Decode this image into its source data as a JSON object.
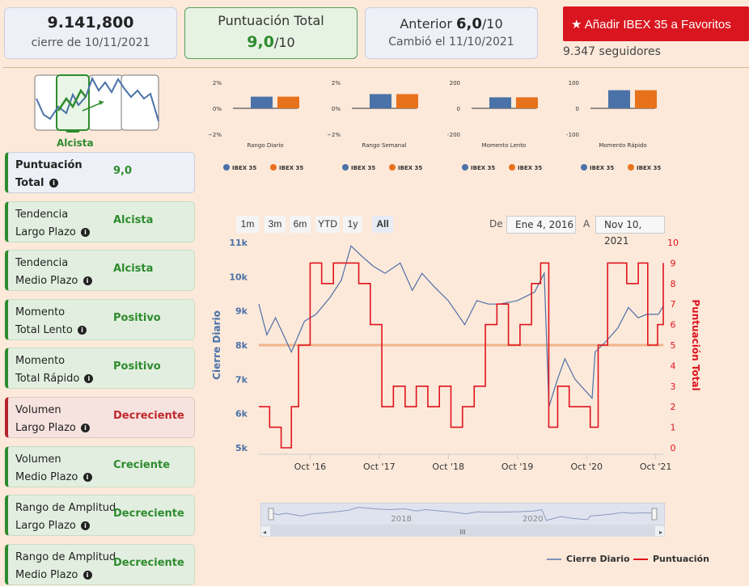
{
  "header": {
    "close_value": "9.141,800",
    "close_date": "cierre de 10/11/2021",
    "score_label": "Puntuación Total",
    "score_value": "9,0",
    "score_suffix": "/10",
    "prev_label": "Anterior",
    "prev_value": "6,0",
    "prev_suffix": "/10",
    "prev_changed": "Cambió el 11/10/2021",
    "favorite_button": "Añadir IBEX 35 a Favoritos",
    "followers": "9.347 seguidores"
  },
  "trend": {
    "label": "Alcista"
  },
  "metrics": [
    {
      "line1": "Puntuación",
      "line2": "Total",
      "value": "9,0",
      "style": "neutral"
    },
    {
      "line1": "Tendencia",
      "line2": "Largo Plazo",
      "value": "Alcista",
      "style": "good"
    },
    {
      "line1": "Tendencia",
      "line2": "Medio Plazo",
      "value": "Alcista",
      "style": "good"
    },
    {
      "line1": "Momento",
      "line2": "Total Lento",
      "value": "Positivo",
      "style": "good"
    },
    {
      "line1": "Momento",
      "line2": "Total Rápido",
      "value": "Positivo",
      "style": "good"
    },
    {
      "line1": "Volumen",
      "line2": "Largo Plazo",
      "value": "Decreciente",
      "style": "bad"
    },
    {
      "line1": "Volumen",
      "line2": "Medio Plazo",
      "value": "Creciente",
      "style": "good"
    },
    {
      "line1": "Rango de Amplitud",
      "line2": "Largo Plazo",
      "value": "Decreciente",
      "style": "good"
    },
    {
      "line1": "Rango de Amplitud",
      "line2": "Medio Plazo",
      "value": "Decreciente",
      "style": "good"
    }
  ],
  "colors": {
    "blue": "#4a72a8",
    "orange": "#e8711c",
    "red": "#e0141e",
    "green": "#2e8b2e",
    "close_line": "#4f6fa6",
    "band": "#f0b48a"
  },
  "range_selector": {
    "buttons": [
      "1m",
      "3m",
      "6m",
      "YTD",
      "1y",
      "All"
    ],
    "active": "All",
    "from_label": "De",
    "from_value": "Ene 4, 2016",
    "to_label": "A",
    "to_value": "Nov 10, 2021"
  },
  "navigator": {
    "year_labels": [
      "2018",
      "2020"
    ],
    "handle": "III"
  },
  "legend": {
    "close": "Cierre Diario",
    "score": "Puntuación"
  },
  "chart_data": [
    {
      "type": "bar",
      "title": "Rango Diario",
      "categories": [
        "IBEX 35",
        "IBEX 35"
      ],
      "values": [
        0.9,
        0.9
      ],
      "ylim": [
        -2,
        2
      ],
      "ticks": [
        "2%",
        "0%",
        "−2%"
      ],
      "legend": [
        "IBEX 35",
        "IBEX 35"
      ]
    },
    {
      "type": "bar",
      "title": "Rango Semanal",
      "categories": [
        "IBEX 35",
        "IBEX 35"
      ],
      "values": [
        1.1,
        1.1
      ],
      "ylim": [
        -2,
        2
      ],
      "ticks": [
        "2%",
        "0%",
        "−2%"
      ],
      "legend": [
        "IBEX 35",
        "IBEX 35"
      ]
    },
    {
      "type": "bar",
      "title": "Momento Lento",
      "categories": [
        "IBEX 35",
        "IBEX 35"
      ],
      "values": [
        85,
        85
      ],
      "ylim": [
        -200,
        200
      ],
      "ticks": [
        "200",
        "0",
        "−200"
      ],
      "legend": [
        "IBEX 35",
        "IBEX 35"
      ]
    },
    {
      "type": "bar",
      "title": "Momento Rápido",
      "categories": [
        "IBEX 35",
        "IBEX 35"
      ],
      "values": [
        70,
        70
      ],
      "ylim": [
        -100,
        100
      ],
      "ticks": [
        "100",
        "0",
        "−100"
      ],
      "legend": [
        "IBEX 35",
        "IBEX 35"
      ]
    },
    {
      "type": "line",
      "xlabel": "",
      "ylabel": "Cierre Diario",
      "y2label": "Puntuación Total",
      "x_ticks": [
        "Oct '16",
        "Oct '17",
        "Oct '18",
        "Oct '19",
        "Oct '20",
        "Oct '21"
      ],
      "y_ticks": [
        "5k",
        "6k",
        "7k",
        "8k",
        "9k",
        "10k",
        "11k"
      ],
      "y2_ticks": [
        "0",
        "1",
        "2",
        "3",
        "4",
        "5",
        "6",
        "7",
        "8",
        "9",
        "10"
      ],
      "ylim": [
        5000,
        11000
      ],
      "y2lim": [
        0,
        10
      ],
      "reference_line": 8000,
      "series": [
        {
          "name": "Cierre Diario",
          "axis": "left",
          "x": [
            "2016-01-04",
            "2016-02-15",
            "2016-04-01",
            "2016-06-24",
            "2016-09-01",
            "2016-11-01",
            "2017-01-15",
            "2017-03-15",
            "2017-05-05",
            "2017-07-01",
            "2017-09-01",
            "2017-11-01",
            "2018-01-20",
            "2018-03-25",
            "2018-05-15",
            "2018-07-20",
            "2018-10-01",
            "2018-12-27",
            "2019-03-01",
            "2019-05-01",
            "2019-07-01",
            "2019-10-01",
            "2019-12-31",
            "2020-02-20",
            "2020-03-16",
            "2020-04-30",
            "2020-06-08",
            "2020-08-01",
            "2020-10-30",
            "2020-11-15",
            "2021-01-10",
            "2021-03-15",
            "2021-05-10",
            "2021-06-30",
            "2021-08-15",
            "2021-10-15",
            "2021-11-10"
          ],
          "y": [
            9200,
            8300,
            8800,
            7800,
            8700,
            8900,
            9400,
            9900,
            10900,
            10600,
            10300,
            10100,
            10400,
            9600,
            10100,
            9700,
            9300,
            8600,
            9300,
            9200,
            9200,
            9300,
            9550,
            10100,
            6200,
            7000,
            7600,
            7000,
            6450,
            7800,
            8100,
            8500,
            9100,
            8800,
            8900,
            8900,
            9140
          ]
        },
        {
          "name": "Puntuación",
          "axis": "right",
          "x": [
            "2016-01-04",
            "2016-03-01",
            "2016-05-01",
            "2016-06-24",
            "2016-08-01",
            "2016-10-01",
            "2016-12-01",
            "2017-02-01",
            "2017-04-01",
            "2017-06-15",
            "2017-08-15",
            "2017-10-15",
            "2017-12-15",
            "2018-02-15",
            "2018-04-15",
            "2018-06-15",
            "2018-08-15",
            "2018-10-15",
            "2018-12-15",
            "2019-02-15",
            "2019-04-15",
            "2019-06-15",
            "2019-08-15",
            "2019-10-15",
            "2019-12-15",
            "2020-02-01",
            "2020-03-15",
            "2020-05-01",
            "2020-07-01",
            "2020-09-01",
            "2020-10-20",
            "2020-12-01",
            "2021-01-20",
            "2021-03-01",
            "2021-05-01",
            "2021-07-01",
            "2021-08-20",
            "2021-10-11",
            "2021-11-10"
          ],
          "y": [
            2,
            1,
            0,
            2,
            5,
            9,
            8,
            9,
            9,
            8,
            6,
            2,
            3,
            2,
            3,
            2,
            3,
            1,
            2,
            3,
            6,
            7,
            5,
            6,
            8,
            9,
            1,
            3,
            2,
            2,
            1,
            5,
            9,
            9,
            8,
            9,
            5,
            6,
            9
          ]
        }
      ]
    }
  ]
}
